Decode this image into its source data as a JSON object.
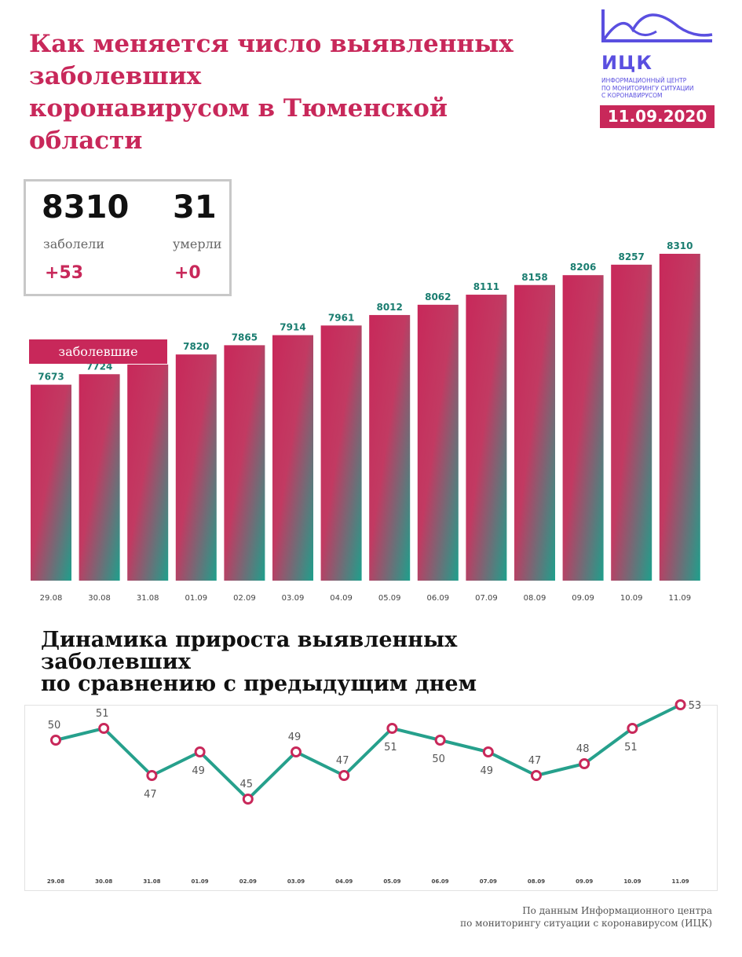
{
  "header": {
    "title": "Как меняется число выявленных\nзаболевших\nкоронавирусом в Тюменской\nобласти",
    "date": "11.09.2020"
  },
  "logo": {
    "abbr": "ИЦК",
    "caption": "Информационный центр\nпо мониторингу ситуации\nс коронавирусом",
    "color": "#5a4fe0"
  },
  "stats": {
    "infected": {
      "value": "8310",
      "label": "заболели",
      "delta": "+53"
    },
    "deaths": {
      "value": "31",
      "label": "умерли",
      "delta": "+0"
    }
  },
  "colors": {
    "accent": "#c8285a",
    "teal": "#26a08c"
  },
  "chart_data": [
    {
      "type": "bar",
      "legend": "заболевшие",
      "categories": [
        "29.08",
        "30.08",
        "31.08",
        "01.09",
        "02.09",
        "03.09",
        "04.09",
        "05.09",
        "06.09",
        "07.09",
        "08.09",
        "09.09",
        "10.09",
        "11.09"
      ],
      "values": [
        7673,
        7724,
        7771,
        7820,
        7865,
        7914,
        7961,
        8012,
        8062,
        8111,
        8158,
        8206,
        8257,
        8310
      ],
      "grid": false
    },
    {
      "type": "line",
      "title": "Динамика прироста выявленных\nзаболевших\nпо сравнению с предыдущим днем",
      "categories": [
        "29.08",
        "30.08",
        "31.08",
        "01.09",
        "02.09",
        "03.09",
        "04.09",
        "05.09",
        "06.09",
        "07.09",
        "08.09",
        "09.09",
        "10.09",
        "11.09"
      ],
      "values": [
        50,
        51,
        47,
        49,
        45,
        49,
        47,
        51,
        50,
        49,
        47,
        48,
        51,
        53
      ],
      "ylim": [
        43,
        54
      ],
      "grid": false
    }
  ],
  "footer": {
    "source": "По данным Информационного центра\nпо мониторингу ситуации с коронавирусом (ИЦК)"
  }
}
